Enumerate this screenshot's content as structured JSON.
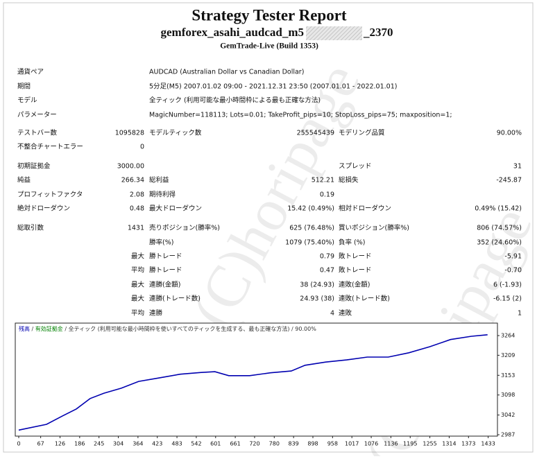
{
  "header": {
    "title": "Strategy Tester Report",
    "subtitle_prefix": "gemforex_asahi_audcad_m5",
    "subtitle_suffix": "_2370",
    "build": "GemTrade-Live (Build 1353)"
  },
  "info": [
    [
      "通貨ペア",
      "AUDCAD (Australian Dollar vs Canadian Dollar)"
    ],
    [
      "期間",
      "5分足(M5) 2007.01.02 09:00 - 2021.12.31 23:50 (2007.01.01 - 2022.01.01)"
    ],
    [
      "モデル",
      "全ティック (利用可能な最小時間枠による最も正確な方法)"
    ],
    [
      "パラメーター",
      "MagicNumber=118113; Lots=0.01; TakeProfit_pips=10; StopLoss_pips=75; maxposition=1;"
    ]
  ],
  "stats": [
    [
      "テストバー数",
      "1095828",
      "モデルティック数",
      "255545439",
      "モデリング品質",
      "90.00%"
    ],
    [
      "不整合チャートエラー",
      "0",
      null,
      null,
      null,
      null
    ],
    [
      "初期証拠金",
      "3000.00",
      null,
      null,
      "スプレッド",
      "31"
    ],
    [
      "純益",
      "266.34",
      "総利益",
      "512.21",
      "総損失",
      "-245.87"
    ],
    [
      "プロフィットファクタ",
      "2.08",
      "期待利得",
      "0.19",
      null,
      null
    ],
    [
      "絶対ドローダウン",
      "0.48",
      "最大ドローダウン",
      "15.42 (0.49%)",
      "相対ドローダウン",
      "0.49% (15.42)"
    ],
    [
      "総取引数",
      "1431",
      "売りポジション(勝率%)",
      "625 (76.48%)",
      "買いポジション(勝率%)",
      "806 (74.57%)"
    ],
    [
      null,
      null,
      "勝率(%)",
      "1079 (75.40%)",
      "負率 (%)",
      "352 (24.60%)"
    ],
    [
      null,
      "最大",
      "勝トレード",
      "0.79",
      "敗トレード",
      "-5.91"
    ],
    [
      null,
      "平均",
      "勝トレード",
      "0.47",
      "敗トレード",
      "-0.70"
    ],
    [
      null,
      "最大",
      "連勝(金額)",
      "38 (24.93)",
      "連敗(金額)",
      "6 (-1.93)"
    ],
    [
      null,
      "最大",
      "連勝(トレード数)",
      "24.93 (38)",
      "連敗(トレード数)",
      "-6.15 (2)"
    ],
    [
      null,
      "平均",
      "連勝",
      "4",
      "連敗",
      "1"
    ]
  ],
  "watermark": "(C)horipage",
  "chart_data": {
    "type": "line",
    "legend": [
      {
        "text": "残高",
        "color": "#0000b0"
      },
      {
        "text": " / ",
        "color": "#333333"
      },
      {
        "text": "有効証拠金",
        "color": "#008000"
      },
      {
        "text": " / ",
        "color": "#333333"
      },
      {
        "text": "全ティック (利用可能な最小時間枠を使いすべてのティックを生成する、最も正確な方法)",
        "color": "#333333"
      },
      {
        "text": " / ",
        "color": "#333333"
      },
      {
        "text": "90.00%",
        "color": "#333333"
      }
    ],
    "x": [
      0,
      85,
      133,
      176,
      218,
      260,
      313,
      366,
      430,
      493,
      557,
      599,
      641,
      705,
      768,
      832,
      874,
      937,
      1001,
      1064,
      1128,
      1191,
      1255,
      1318,
      1382,
      1431
    ],
    "series": [
      {
        "color": "#0000b0",
        "values": [
          3000,
          3016,
          3039,
          3059,
          3088,
          3103,
          3117,
          3136,
          3146,
          3156,
          3161,
          3163,
          3152,
          3152,
          3160,
          3165,
          3181,
          3190,
          3196,
          3204,
          3204,
          3216,
          3233,
          3253,
          3262,
          3266.34
        ]
      }
    ],
    "xlim": [
      0,
      1455
    ],
    "ylim": [
      2985,
      3295
    ],
    "xticks": [
      0,
      67,
      126,
      186,
      245,
      304,
      364,
      423,
      483,
      542,
      601,
      661,
      720,
      780,
      839,
      898,
      958,
      1017,
      1076,
      1136,
      1195,
      1255,
      1314,
      1373,
      1433
    ],
    "yticks": [
      2987,
      3042,
      3098,
      3153,
      3209,
      3264
    ]
  }
}
